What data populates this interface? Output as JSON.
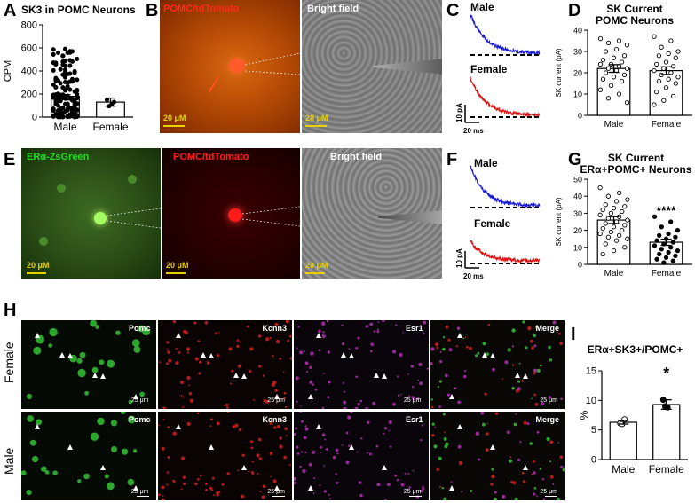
{
  "panels": {
    "A": {
      "label": "A",
      "title": "SK3 in POMC Neurons"
    },
    "B": {
      "label": "B",
      "fluor_label": "POMC/tdTomato",
      "bright_label": "Bright field",
      "scale1": "20 μM",
      "scale2": "20 μM"
    },
    "C": {
      "label": "C",
      "male": "Male",
      "female": "Female",
      "scale_y": "10 pA",
      "scale_x": "20 ms"
    },
    "D": {
      "label": "D",
      "title_line1": "SK Current",
      "title_line2": "POMC Neurons"
    },
    "E": {
      "label": "E",
      "green_label": "ERα-ZsGreen",
      "red_label": "POMC/tdTomato",
      "bright_label": "Bright field",
      "scale1": "20 μM",
      "scale2": "20 μM",
      "scale3": "20 μM"
    },
    "F": {
      "label": "F",
      "male": "Male",
      "female": "Female",
      "scale_y": "10 pA",
      "scale_x": "20 ms"
    },
    "G": {
      "label": "G",
      "title_line1": "SK Current",
      "title_line2": "ERα+POMC+ Neurons",
      "sig": "****"
    },
    "H": {
      "label": "H",
      "row_female": "Female",
      "row_male": "Male",
      "channels": [
        "Pomc",
        "Kcnn3",
        "Esr1",
        "Merge"
      ],
      "scale": "25 μm"
    },
    "I": {
      "label": "I",
      "title": "ERα+SK3+/POMC+",
      "sig": "*"
    }
  },
  "chart_data": [
    {
      "id": "A",
      "type": "bar",
      "categories": [
        "Male",
        "Female"
      ],
      "values": [
        180,
        130
      ],
      "errors": [
        15,
        35
      ],
      "ylabel": "CPM",
      "ylim": [
        0,
        800
      ],
      "yticks": [
        0,
        200,
        400,
        600,
        800
      ],
      "points": {
        "Female": [
          150,
          115,
          95,
          130
        ]
      }
    },
    {
      "id": "D",
      "type": "bar",
      "categories": [
        "Male",
        "Female"
      ],
      "values": [
        22,
        21
      ],
      "errors": [
        1.8,
        1.8
      ],
      "ylabel": "SK current (pA)",
      "ylim": [
        0,
        40
      ],
      "yticks": [
        0,
        10,
        20,
        30,
        40
      ],
      "points": {
        "Male": [
          36,
          35,
          34,
          33,
          31,
          30,
          28,
          27,
          26,
          25,
          24,
          24,
          23,
          22,
          22,
          21,
          20,
          19,
          18,
          17,
          16,
          14,
          12,
          10,
          8,
          6
        ],
        "Female": [
          37,
          35,
          32,
          30,
          29,
          28,
          27,
          25,
          24,
          23,
          22,
          21,
          20,
          19,
          18,
          17,
          16,
          15,
          13,
          11,
          9,
          7,
          5
        ]
      }
    },
    {
      "id": "G",
      "type": "bar",
      "categories": [
        "Male",
        "Female"
      ],
      "values": [
        26,
        13
      ],
      "errors": [
        2,
        1.8
      ],
      "ylabel": "SK current (pA)",
      "ylim": [
        0,
        50
      ],
      "yticks": [
        0,
        10,
        20,
        30,
        40,
        50
      ],
      "points": {
        "Male": [
          45,
          42,
          40,
          38,
          37,
          35,
          34,
          33,
          32,
          31,
          30,
          29,
          28,
          27,
          26,
          25,
          24,
          23,
          22,
          21,
          20,
          19,
          18,
          17,
          16,
          15,
          14,
          12,
          10,
          8,
          6
        ],
        "Female": [
          28,
          25,
          22,
          20,
          18,
          17,
          16,
          15,
          14,
          13,
          12,
          11,
          10,
          9,
          8,
          7,
          6,
          5,
          4,
          3,
          2,
          1
        ]
      }
    },
    {
      "id": "I",
      "type": "bar",
      "categories": [
        "Male",
        "Female"
      ],
      "values": [
        6.3,
        9.3
      ],
      "errors": [
        0.3,
        0.8
      ],
      "ylabel": "%",
      "ylim": [
        0,
        15
      ],
      "yticks": [
        0,
        5,
        10,
        15
      ],
      "points": {
        "Male": [
          6.1,
          6.8,
          6.0
        ],
        "Female": [
          10.1,
          8.8,
          9.0
        ]
      }
    }
  ]
}
